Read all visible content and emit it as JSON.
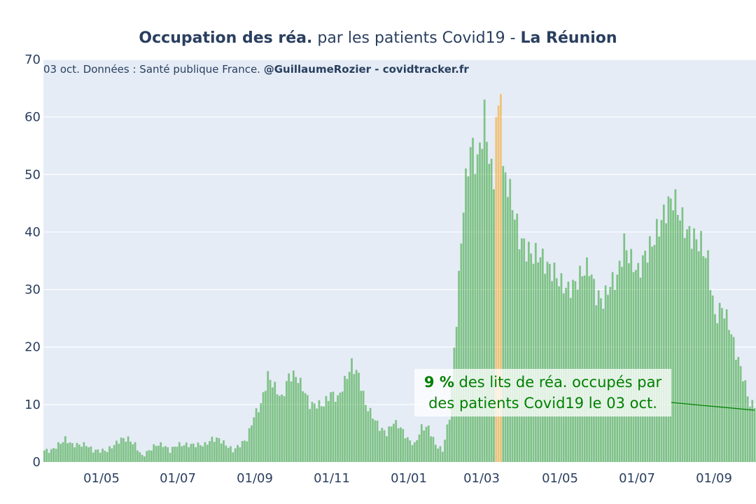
{
  "title": {
    "part1_bold": "Occupation des réa.",
    "part2": " par les patients Covid19 - ",
    "part3_bold": "La Réunion"
  },
  "subtitle": {
    "text": "03 oct. Données : Santé publique France. ",
    "bold": "@GuillaumeRozier - covidtracker.fr"
  },
  "annotation": {
    "value": "9  %",
    "text_line1": " des lits de réa. occupés par",
    "text_line2": "des patients Covid19 le 03 oct."
  },
  "colors": {
    "bar": "#2ca02c",
    "highlight_bar": "#f5b041",
    "plot_bg": "#e5ecf6",
    "annotation_text": "#008000"
  },
  "chart_data": {
    "type": "bar",
    "ylim": [
      0,
      70
    ],
    "yticks": [
      0,
      10,
      20,
      30,
      40,
      50,
      60,
      70
    ],
    "xticks": [
      "01/05",
      "01/07",
      "01/09",
      "01/11",
      "01/01",
      "01/03",
      "01/05",
      "01/07",
      "01/09"
    ],
    "highlighted_period": "mid-March (peak ~64)",
    "series": [
      {
        "weekly_values": [
          2,
          2,
          3,
          4,
          3,
          3,
          3,
          2,
          2,
          2,
          3,
          4,
          4,
          3,
          1,
          2,
          3,
          3,
          2,
          3,
          3,
          3,
          3,
          3,
          4,
          4,
          3,
          2,
          3,
          4,
          8,
          10,
          15,
          13,
          11,
          15,
          15,
          13,
          10,
          10,
          10,
          12,
          11,
          14,
          17,
          15,
          10,
          8,
          6,
          5,
          7,
          6,
          4,
          3,
          6,
          6,
          3,
          2,
          8,
          25,
          45,
          55,
          52,
          60,
          50,
          49,
          50,
          45,
          39,
          37,
          36,
          36,
          34,
          33,
          31,
          30,
          31,
          33,
          34,
          29,
          28,
          31,
          32,
          38,
          35,
          33,
          36,
          38,
          41,
          44,
          46,
          43,
          40,
          39,
          38,
          35,
          25,
          27,
          24,
          19,
          15,
          10
        ]
      }
    ]
  }
}
